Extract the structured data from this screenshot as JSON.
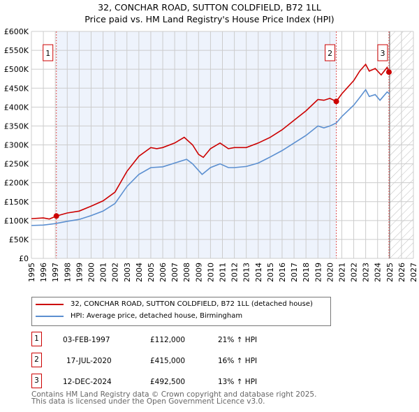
{
  "chart_data": {
    "type": "line",
    "title": "32, CONCHAR ROAD, SUTTON COLDFIELD, B72 1LL",
    "subtitle": "Price paid vs. HM Land Registry's House Price Index (HPI)",
    "xlim": [
      1995,
      2027
    ],
    "ylim": [
      0,
      600000
    ],
    "x_ticks": [
      "1995",
      "1996",
      "1997",
      "1998",
      "1999",
      "2000",
      "2001",
      "2002",
      "2003",
      "2004",
      "2005",
      "2006",
      "2007",
      "2008",
      "2009",
      "2010",
      "2011",
      "2012",
      "2013",
      "2014",
      "2015",
      "2016",
      "2017",
      "2018",
      "2019",
      "2020",
      "2021",
      "2022",
      "2023",
      "2024",
      "2025",
      "2026",
      "2027"
    ],
    "y_ticks": [
      "£0",
      "£50K",
      "£100K",
      "£150K",
      "£200K",
      "£250K",
      "£300K",
      "£350K",
      "£400K",
      "£450K",
      "£500K",
      "£550K",
      "£600K"
    ],
    "grid": true,
    "series": [
      {
        "name": "32, CONCHAR ROAD, SUTTON COLDFIELD, B72 1LL (detached house)",
        "color": "#cc0000",
        "x": [
          1995,
          1996,
          1996.5,
          1997.09,
          1998,
          1999,
          2000,
          2001,
          2002,
          2003,
          2004,
          2005,
          2005.5,
          2006,
          2007,
          2007.8,
          2008.5,
          2009,
          2009.4,
          2010,
          2010.8,
          2011.5,
          2012,
          2013,
          2014,
          2015,
          2016,
          2017,
          2018,
          2019,
          2019.5,
          2020,
          2020.54,
          2021,
          2022,
          2022.5,
          2023,
          2023.3,
          2023.8,
          2024.3,
          2024.8,
          2024.95
        ],
        "y": [
          105,
          107,
          104,
          112,
          120,
          125,
          138,
          152,
          175,
          230,
          270,
          293,
          290,
          293,
          305,
          320,
          300,
          275,
          267,
          290,
          305,
          290,
          293,
          293,
          305,
          320,
          340,
          365,
          390,
          420,
          418,
          423,
          415,
          435,
          470,
          495,
          513,
          495,
          502,
          485,
          505,
          492.5
        ]
      },
      {
        "name": "HPI: Average price, detached house, Birmingham",
        "color": "#5b8fd0",
        "x": [
          1995,
          1996,
          1997,
          1998,
          1999,
          2000,
          2001,
          2002,
          2003,
          2004,
          2005,
          2006,
          2007,
          2008,
          2008.5,
          2009.3,
          2010,
          2010.8,
          2011.5,
          2012,
          2013,
          2014,
          2015,
          2016,
          2017,
          2018,
          2019,
          2019.5,
          2020,
          2020.54,
          2021,
          2022,
          2022.5,
          2023,
          2023.3,
          2023.8,
          2024.2,
          2024.8,
          2025
        ],
        "y": [
          87,
          88,
          92,
          98,
          103,
          113,
          125,
          145,
          190,
          222,
          240,
          242,
          252,
          262,
          250,
          222,
          240,
          250,
          240,
          240,
          243,
          252,
          268,
          285,
          305,
          325,
          350,
          345,
          350,
          358,
          375,
          405,
          425,
          446,
          428,
          433,
          418,
          440,
          435
        ]
      }
    ],
    "y_units": "thousands GBP",
    "sales": [
      {
        "n": "1",
        "x": 1997.09,
        "date": "03-FEB-1997",
        "price": "£112,000",
        "hpi": "21% ↑ HPI",
        "value": 112
      },
      {
        "n": "2",
        "x": 2020.54,
        "date": "17-JUL-2020",
        "price": "£415,000",
        "hpi": "16% ↑ HPI",
        "value": 415
      },
      {
        "n": "3",
        "x": 2024.95,
        "date": "12-DEC-2024",
        "price": "£492,500",
        "hpi": "13% ↑ HPI",
        "value": 492.5
      }
    ],
    "future_from": 2025,
    "legend": "below"
  },
  "footer": [
    "Contains HM Land Registry data © Crown copyright and database right 2025.",
    "This data is licensed under the Open Government Licence v3.0."
  ]
}
